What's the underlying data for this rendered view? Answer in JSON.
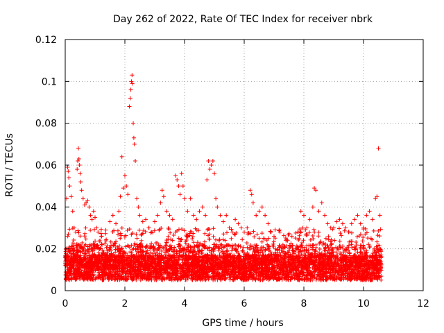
{
  "chart_data": {
    "type": "scatter",
    "title": "Day 262 of 2022, Rate Of TEC Index for receiver nbrk",
    "xlabel": "GPS time / hours",
    "ylabel": "ROTI / TECUs",
    "xlim": [
      0,
      12
    ],
    "ylim": [
      0,
      0.12
    ],
    "xticks": [
      0,
      2,
      4,
      6,
      8,
      10,
      12
    ],
    "yticks": [
      0,
      0.02,
      0.04,
      0.06,
      0.08,
      0.1,
      0.12
    ],
    "xtick_labels": [
      "0",
      "2",
      "4",
      "6",
      "8",
      "10",
      "12"
    ],
    "ytick_labels": [
      "0",
      "0.02",
      "0.04",
      "0.06",
      "0.08",
      "0.1",
      "0.12"
    ],
    "grid": true,
    "marker": "+",
    "color": "#ff0000",
    "x_data_range": [
      0,
      10.6
    ],
    "series": [
      {
        "points": [
          [
            0.05,
            0.044
          ],
          [
            0.08,
            0.059
          ],
          [
            0.1,
            0.057
          ],
          [
            0.12,
            0.054
          ],
          [
            0.15,
            0.05
          ],
          [
            0.2,
            0.045
          ],
          [
            0.25,
            0.038
          ],
          [
            0.3,
            0.03
          ],
          [
            0.35,
            0.028
          ],
          [
            0.4,
            0.058
          ],
          [
            0.42,
            0.062
          ],
          [
            0.44,
            0.068
          ],
          [
            0.46,
            0.063
          ],
          [
            0.48,
            0.06
          ],
          [
            0.5,
            0.056
          ],
          [
            0.52,
            0.052
          ],
          [
            0.55,
            0.048
          ],
          [
            0.6,
            0.044
          ],
          [
            0.65,
            0.041
          ],
          [
            0.7,
            0.042
          ],
          [
            0.75,
            0.043
          ],
          [
            0.8,
            0.04
          ],
          [
            0.85,
            0.036
          ],
          [
            0.9,
            0.034
          ],
          [
            0.95,
            0.038
          ],
          [
            1.0,
            0.035
          ],
          [
            1.05,
            0.03
          ],
          [
            1.1,
            0.028
          ],
          [
            1.5,
            0.033
          ],
          [
            1.6,
            0.036
          ],
          [
            1.7,
            0.032
          ],
          [
            1.8,
            0.038
          ],
          [
            1.85,
            0.045
          ],
          [
            1.9,
            0.064
          ],
          [
            1.95,
            0.049
          ],
          [
            2.0,
            0.055
          ],
          [
            2.05,
            0.05
          ],
          [
            2.1,
            0.046
          ],
          [
            2.15,
            0.088
          ],
          [
            2.18,
            0.092
          ],
          [
            2.2,
            0.096
          ],
          [
            2.22,
            0.1
          ],
          [
            2.24,
            0.103
          ],
          [
            2.25,
            0.099
          ],
          [
            2.28,
            0.08
          ],
          [
            2.3,
            0.073
          ],
          [
            2.32,
            0.07
          ],
          [
            2.35,
            0.062
          ],
          [
            2.4,
            0.044
          ],
          [
            2.45,
            0.04
          ],
          [
            2.5,
            0.036
          ],
          [
            2.6,
            0.033
          ],
          [
            2.7,
            0.034
          ],
          [
            2.8,
            0.03
          ],
          [
            2.9,
            0.028
          ],
          [
            3.0,
            0.033
          ],
          [
            3.1,
            0.036
          ],
          [
            3.2,
            0.042
          ],
          [
            3.25,
            0.048
          ],
          [
            3.3,
            0.045
          ],
          [
            3.4,
            0.038
          ],
          [
            3.5,
            0.036
          ],
          [
            3.6,
            0.034
          ],
          [
            3.7,
            0.055
          ],
          [
            3.75,
            0.053
          ],
          [
            3.8,
            0.05
          ],
          [
            3.85,
            0.046
          ],
          [
            3.9,
            0.056
          ],
          [
            3.95,
            0.05
          ],
          [
            4.0,
            0.044
          ],
          [
            4.1,
            0.038
          ],
          [
            4.2,
            0.044
          ],
          [
            4.3,
            0.036
          ],
          [
            4.4,
            0.034
          ],
          [
            4.5,
            0.038
          ],
          [
            4.6,
            0.04
          ],
          [
            4.7,
            0.036
          ],
          [
            4.75,
            0.053
          ],
          [
            4.8,
            0.062
          ],
          [
            4.85,
            0.058
          ],
          [
            4.9,
            0.06
          ],
          [
            4.95,
            0.062
          ],
          [
            5.0,
            0.056
          ],
          [
            5.05,
            0.044
          ],
          [
            5.1,
            0.04
          ],
          [
            5.2,
            0.036
          ],
          [
            5.3,
            0.033
          ],
          [
            5.4,
            0.036
          ],
          [
            5.5,
            0.03
          ],
          [
            5.6,
            0.028
          ],
          [
            5.7,
            0.034
          ],
          [
            5.8,
            0.032
          ],
          [
            5.9,
            0.03
          ],
          [
            6.0,
            0.028
          ],
          [
            6.1,
            0.03
          ],
          [
            6.2,
            0.048
          ],
          [
            6.25,
            0.046
          ],
          [
            6.3,
            0.042
          ],
          [
            6.4,
            0.036
          ],
          [
            6.5,
            0.038
          ],
          [
            6.6,
            0.04
          ],
          [
            6.7,
            0.036
          ],
          [
            6.8,
            0.032
          ],
          [
            6.9,
            0.028
          ],
          [
            7.0,
            0.026
          ],
          [
            7.2,
            0.028
          ],
          [
            7.4,
            0.024
          ],
          [
            7.6,
            0.026
          ],
          [
            7.8,
            0.028
          ],
          [
            7.9,
            0.038
          ],
          [
            8.0,
            0.036
          ],
          [
            8.1,
            0.03
          ],
          [
            8.2,
            0.034
          ],
          [
            8.3,
            0.04
          ],
          [
            8.35,
            0.049
          ],
          [
            8.4,
            0.048
          ],
          [
            8.5,
            0.038
          ],
          [
            8.6,
            0.042
          ],
          [
            8.7,
            0.036
          ],
          [
            8.8,
            0.032
          ],
          [
            8.9,
            0.03
          ],
          [
            9.0,
            0.03
          ],
          [
            9.1,
            0.033
          ],
          [
            9.2,
            0.034
          ],
          [
            9.3,
            0.032
          ],
          [
            9.4,
            0.03
          ],
          [
            9.5,
            0.028
          ],
          [
            9.6,
            0.032
          ],
          [
            9.7,
            0.034
          ],
          [
            9.8,
            0.036
          ],
          [
            9.9,
            0.032
          ],
          [
            10.0,
            0.03
          ],
          [
            10.1,
            0.036
          ],
          [
            10.2,
            0.038
          ],
          [
            10.3,
            0.034
          ],
          [
            10.4,
            0.044
          ],
          [
            10.45,
            0.045
          ],
          [
            10.5,
            0.068
          ],
          [
            10.55,
            0.036
          ]
        ]
      }
    ]
  }
}
